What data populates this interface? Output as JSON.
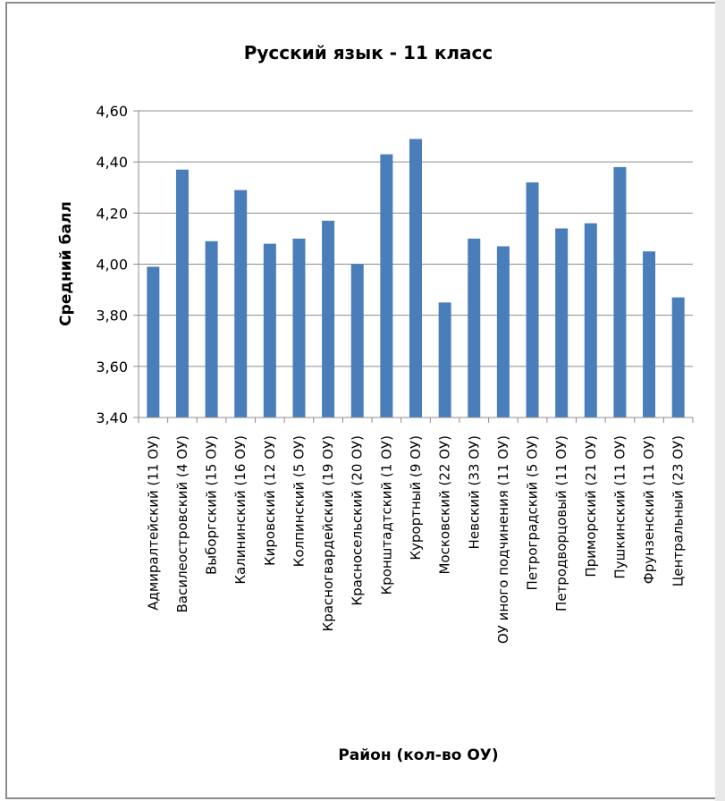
{
  "chart_data": {
    "type": "bar",
    "title": "Русский язык - 11 класс",
    "xlabel": "Район (кол-во ОУ)",
    "ylabel": "Средний балл",
    "ylim": [
      3.4,
      4.6
    ],
    "yticks": [
      "3,40",
      "3,60",
      "3,80",
      "4,00",
      "4,20",
      "4,40",
      "4,60"
    ],
    "grid": true,
    "categories": [
      "Адмиралтейский (11 ОУ)",
      "Василеостровский (4 ОУ)",
      "Выборгский (15 ОУ)",
      "Калининский (16 ОУ)",
      "Кировский (12 ОУ)",
      "Колпинский (5 ОУ)",
      "Красногвардейский (19 ОУ)",
      "Красносельский (20 ОУ)",
      "Кронштадтский (1 ОУ)",
      "Курортный (9 ОУ)",
      "Московский (22 ОУ)",
      "Невский (33 ОУ)",
      "ОУ иного подчинения (11 ОУ)",
      "Петроградский (5 ОУ)",
      "Петродворцовый (11 ОУ)",
      "Приморский (21 ОУ)",
      "Пушкинский (11 ОУ)",
      "Фрунзенский (11 ОУ)",
      "Центральный (23 ОУ)"
    ],
    "values": [
      3.99,
      4.37,
      4.09,
      4.29,
      4.08,
      4.1,
      4.17,
      4.0,
      4.43,
      4.49,
      3.85,
      4.1,
      4.07,
      4.32,
      4.14,
      4.16,
      4.38,
      4.05,
      3.87
    ],
    "colors": {
      "bar": "#4a7ebb",
      "grid": "#8c8c8c",
      "axis": "#8c8c8c"
    }
  }
}
